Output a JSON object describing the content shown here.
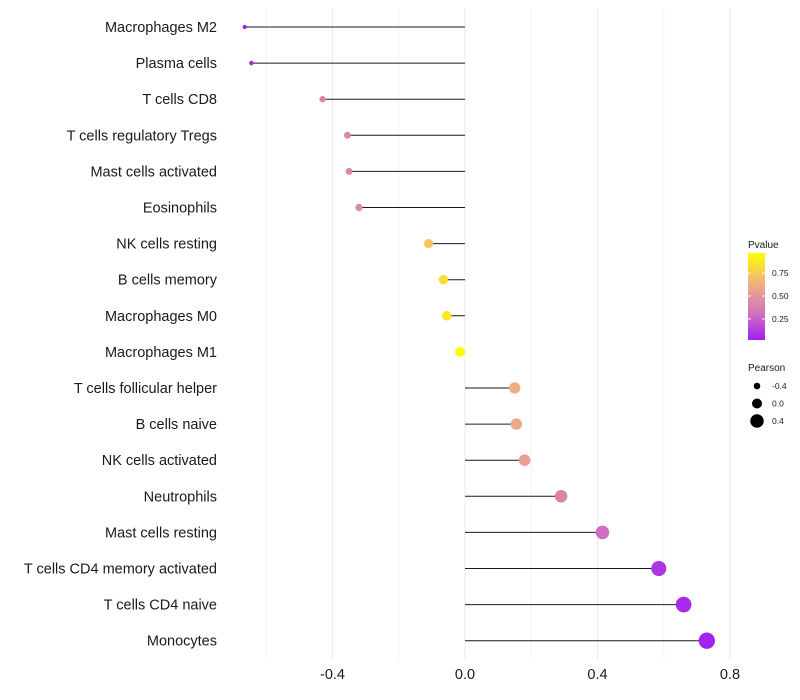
{
  "chart_data": {
    "type": "lollipop",
    "title": "",
    "xlabel": "",
    "ylabel": "",
    "xlim": [
      -0.66,
      0.88
    ],
    "x_ticks": [
      -0.4,
      0.0,
      0.4,
      0.8
    ],
    "x_tick_labels": [
      "-0.4",
      "0.0",
      "0.4",
      "0.8"
    ],
    "categories": [
      "Macrophages M2",
      "Plasma cells",
      "T cells CD8",
      "T cells regulatory  Tregs ",
      "Mast cells activated",
      "Eosinophils",
      "NK cells resting",
      "B cells memory",
      "Macrophages M0",
      "Macrophages M1",
      "T cells follicular helper",
      "B cells naive",
      "NK cells activated",
      "Neutrophils",
      "Mast cells resting",
      "T cells CD4 memory activated",
      "T cells CD4 naive",
      "Monocytes"
    ],
    "pearson": [
      -0.665,
      -0.645,
      -0.43,
      -0.355,
      -0.35,
      -0.32,
      -0.11,
      -0.065,
      -0.055,
      -0.015,
      0.15,
      0.155,
      0.18,
      0.29,
      0.415,
      0.585,
      0.66,
      0.73
    ],
    "pvalue": [
      0.02,
      0.04,
      0.4,
      0.42,
      0.43,
      0.45,
      0.72,
      0.82,
      0.88,
      0.97,
      0.62,
      0.6,
      0.55,
      0.4,
      0.3,
      0.1,
      0.06,
      0.03
    ],
    "color_legend": {
      "title": "Pvalue",
      "ticks": [
        0.25,
        0.5,
        0.75
      ],
      "tick_labels": [
        "0.25",
        "0.50",
        "0.75"
      ],
      "range": [
        0.02,
        0.97
      ],
      "colors": [
        "#a020f0",
        "#d070c0",
        "#f0c078",
        "#ffff00"
      ]
    },
    "size_legend": {
      "title": "Pearson",
      "values": [
        -0.4,
        0.0,
        0.4
      ],
      "labels": [
        "-0.4",
        "0.0",
        "0.4"
      ]
    },
    "grid": true
  }
}
